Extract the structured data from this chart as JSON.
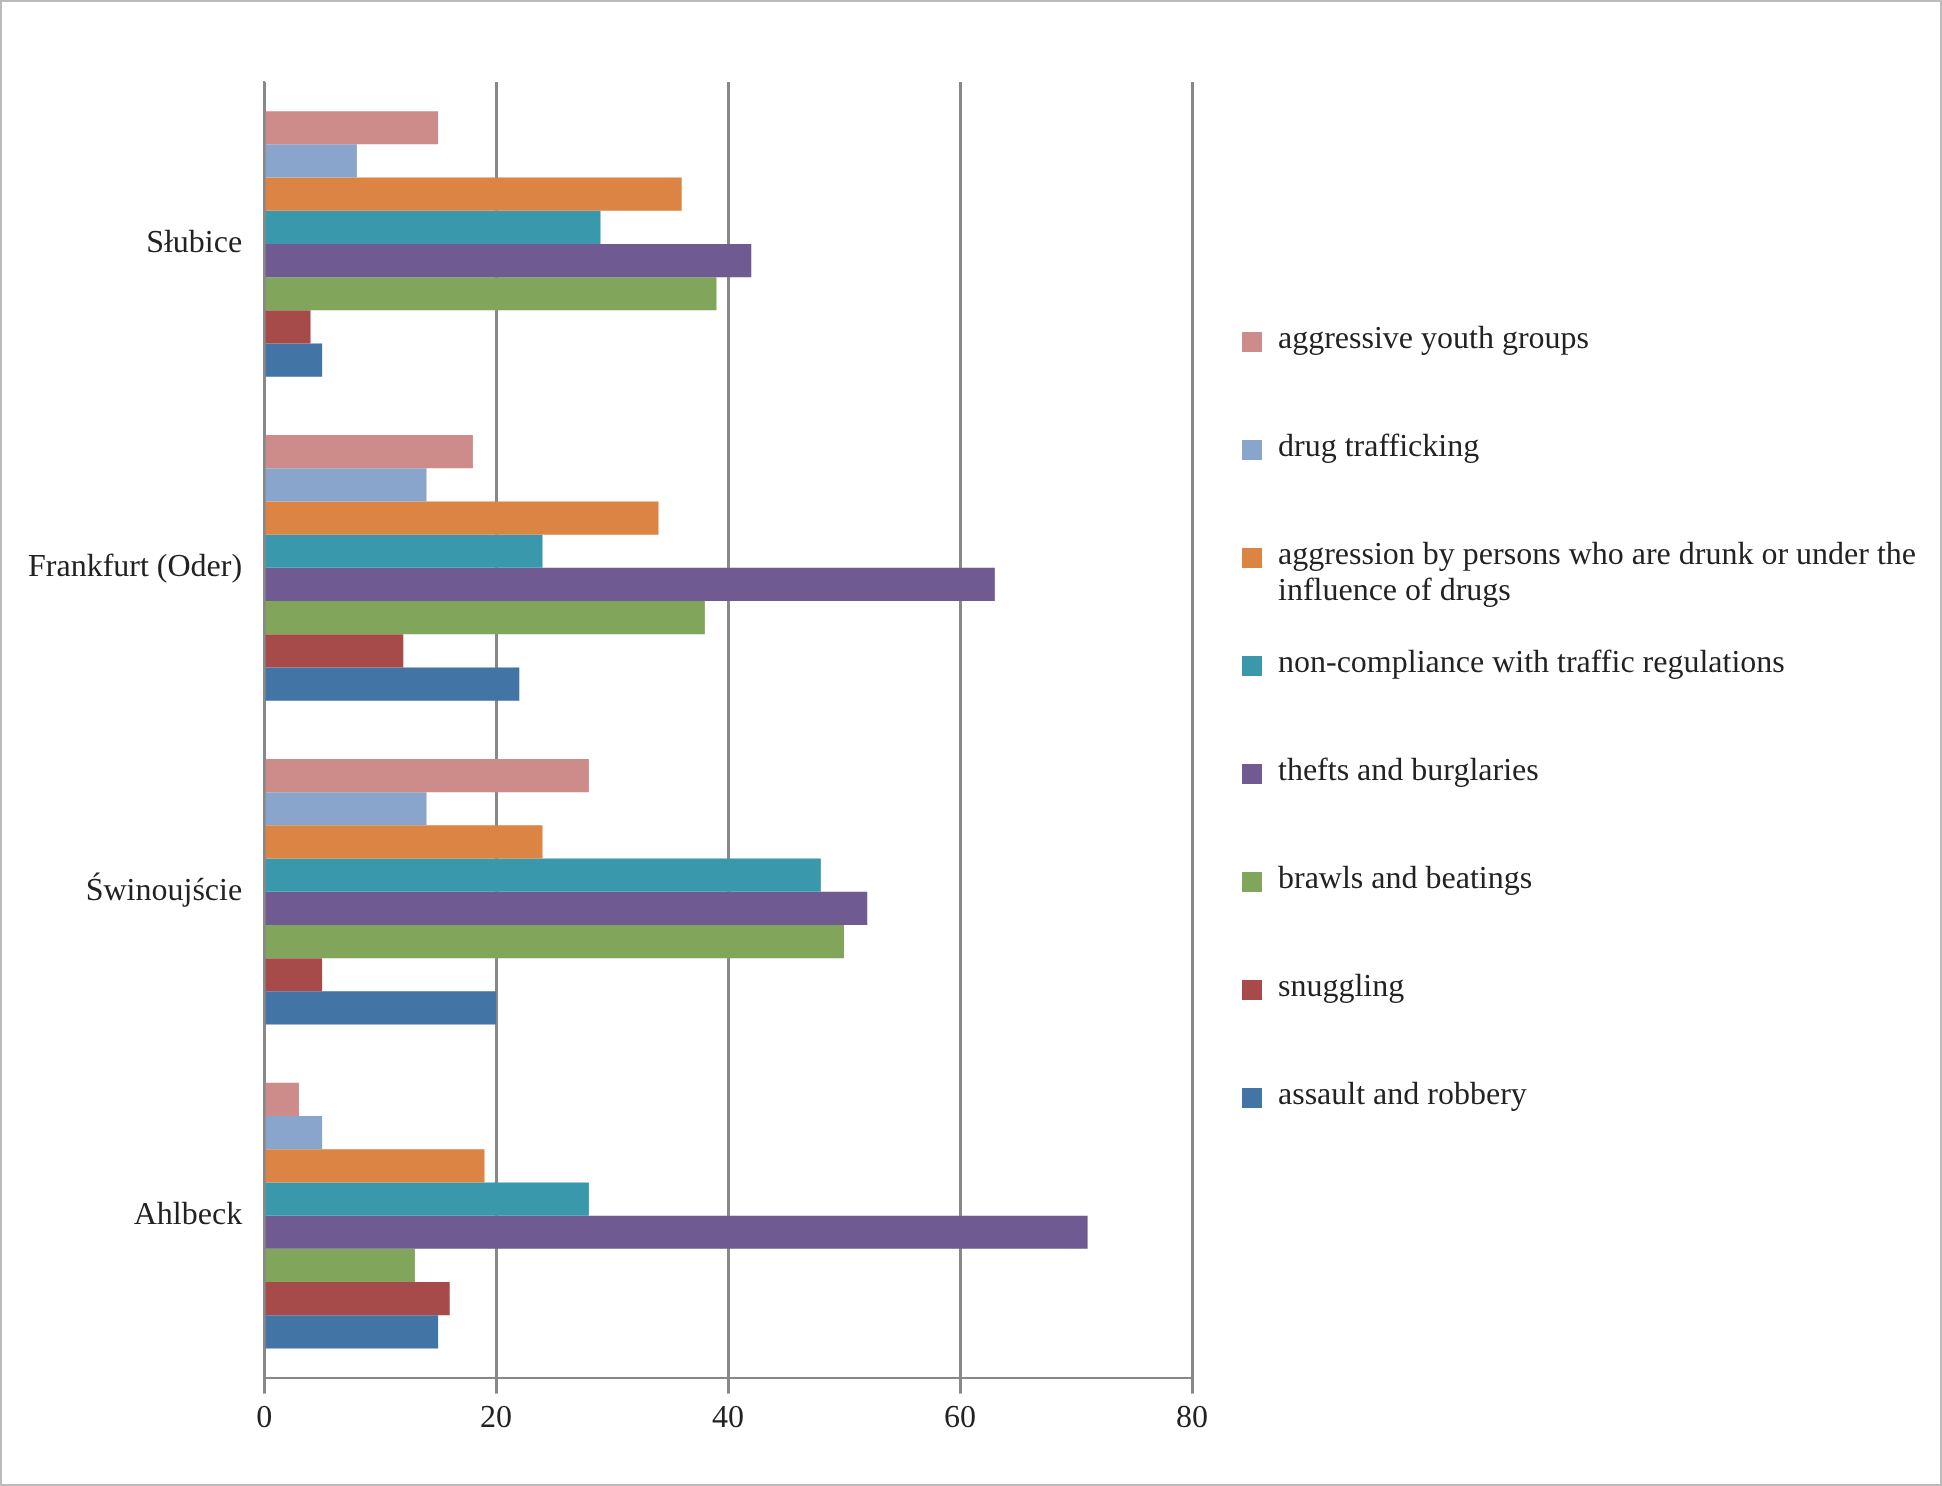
{
  "chart_data": {
    "type": "bar",
    "orientation": "horizontal",
    "categories": [
      "Słubice",
      "Frankfurt (Oder)",
      "Świnoujście",
      "Ahlbeck"
    ],
    "series": [
      {
        "name": "aggressive youth groups",
        "color": "#cd8b8a",
        "values": [
          15,
          18,
          28,
          3
        ]
      },
      {
        "name": "drug trafficking",
        "color": "#8aa5cb",
        "values": [
          8,
          14,
          14,
          5
        ]
      },
      {
        "name": "aggression by persons who are drunk or under the influence of drugs",
        "color": "#db8444",
        "values": [
          36,
          34,
          24,
          19
        ]
      },
      {
        "name": "non-compliance with traffic regulations",
        "color": "#3a98ad",
        "values": [
          29,
          24,
          48,
          28
        ]
      },
      {
        "name": "thefts and burglaries",
        "color": "#6f5b91",
        "values": [
          42,
          63,
          52,
          71
        ]
      },
      {
        "name": "brawls and beatings",
        "color": "#81a55a",
        "values": [
          39,
          38,
          50,
          13
        ]
      },
      {
        "name": "snuggling",
        "color": "#a64a4a",
        "values": [
          4,
          12,
          5,
          16
        ]
      },
      {
        "name": "assault and robbery",
        "color": "#4275a6",
        "values": [
          5,
          22,
          20,
          15
        ]
      }
    ],
    "xlim": [
      0,
      80
    ],
    "xticks": [
      0,
      20,
      40,
      60,
      80
    ],
    "grid": "x",
    "legend": "right"
  }
}
